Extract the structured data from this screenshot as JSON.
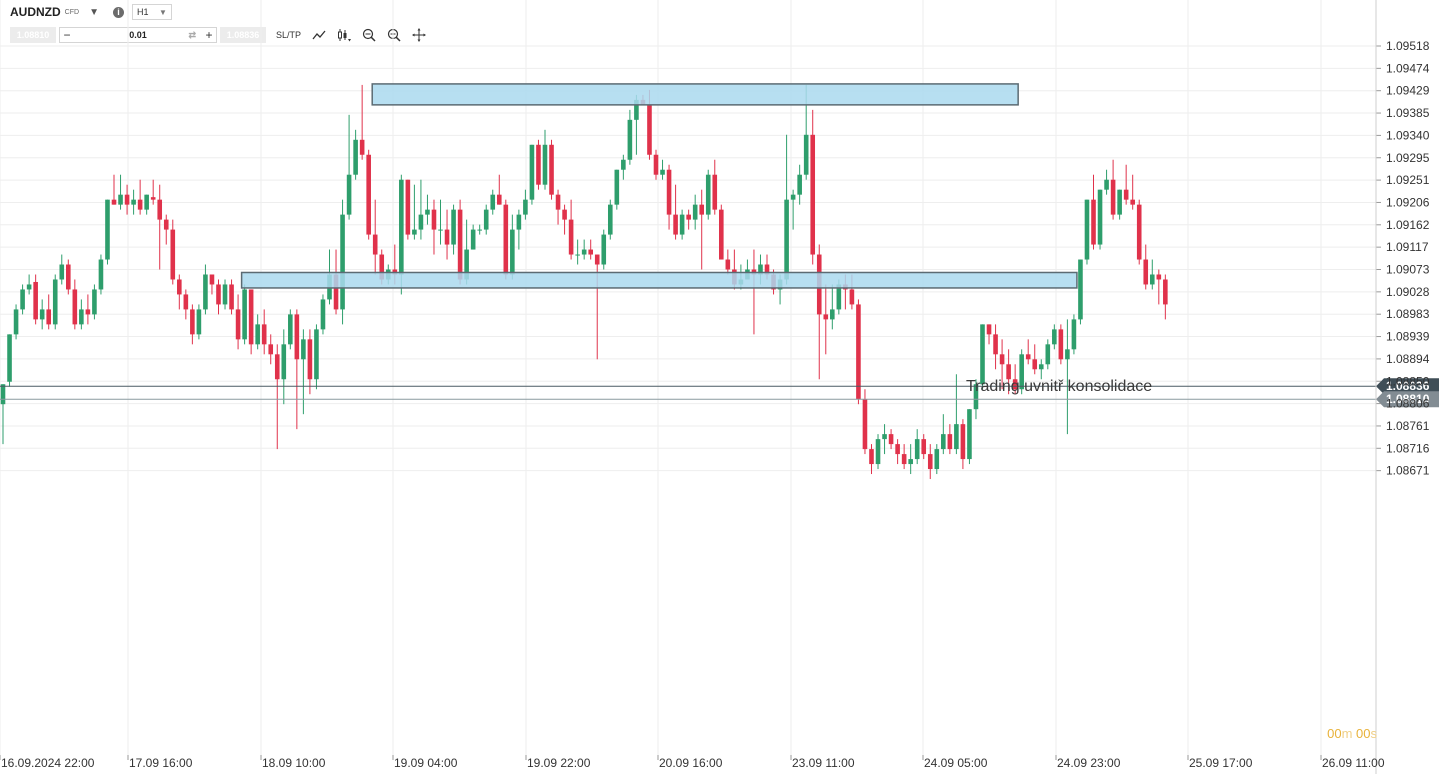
{
  "toolbar": {
    "symbol": "AUDNZD",
    "instrument_type": "CFD",
    "timeframe": "H1",
    "bid_box": "1.08810",
    "ask_box": "1.08836",
    "quantity": "0.01",
    "sltp_label": "SL/TP",
    "icons": [
      "dropdown-icon",
      "info-icon",
      "line-chart-icon",
      "candle-chart-icon",
      "zoom-out-icon",
      "zoom-in-icon",
      "crosshair-icon"
    ]
  },
  "annotation": "Trading uvnitř konsolidace",
  "timer": {
    "minutes": "00",
    "m": "m",
    "seconds": "00",
    "s": "s"
  },
  "colors": {
    "bull": "#2e9e6c",
    "bear": "#e0324b",
    "zone_fill": "#aad9ef",
    "zone_stroke": "#5c6b73",
    "current_price_tag": "#3f4e57",
    "bid_price_tag": "#828c93"
  },
  "chart_data": {
    "type": "candlestick",
    "y_ticks": [
      "1.09518",
      "1.09474",
      "1.09429",
      "1.09385",
      "1.09340",
      "1.09295",
      "1.09251",
      "1.09206",
      "1.09162",
      "1.09117",
      "1.09073",
      "1.09028",
      "1.08983",
      "1.08939",
      "1.08894",
      "1.08850",
      "1.08806",
      "1.08761",
      "1.08716",
      "1.08671"
    ],
    "ylim": [
      1.0865,
      1.0955
    ],
    "x_ticks": [
      "16.09.2024 22:00",
      "17.09 16:00",
      "18.09 10:00",
      "19.09 04:00",
      "19.09 22:00",
      "20.09 16:00",
      "23.09 11:00",
      "24.09 05:00",
      "24.09 23:00",
      "25.09 17:00",
      "26.09 11:00"
    ],
    "price_lines": [
      {
        "label": "1.08836",
        "value": 1.08836
      },
      {
        "label": "1.08810",
        "value": 1.0881
      }
    ],
    "zones": [
      {
        "from_candle": 57,
        "to_candle": 155,
        "low": 1.094,
        "high": 1.09442
      },
      {
        "from_candle": 37,
        "to_candle": 164,
        "low": 1.09033,
        "high": 1.09064
      }
    ],
    "candles": [
      [
        1.088,
        1.0884,
        1.0872,
        1.0884
      ],
      [
        1.08845,
        1.0894,
        1.08835,
        1.0894
      ],
      [
        1.0894,
        1.09,
        1.0893,
        1.0899
      ],
      [
        1.0899,
        1.0904,
        1.0898,
        1.0903
      ],
      [
        1.0903,
        1.0906,
        1.0902,
        1.0904
      ],
      [
        1.09045,
        1.0906,
        1.0896,
        1.0897
      ],
      [
        1.0897,
        1.0901,
        1.0895,
        1.0899
      ],
      [
        1.0899,
        1.0902,
        1.0895,
        1.0896
      ],
      [
        1.0896,
        1.0906,
        1.0895,
        1.0905
      ],
      [
        1.0905,
        1.091,
        1.0904,
        1.0908
      ],
      [
        1.0908,
        1.0909,
        1.0902,
        1.0903
      ],
      [
        1.0903,
        1.0905,
        1.0895,
        1.0896
      ],
      [
        1.0896,
        1.0901,
        1.0895,
        1.0899
      ],
      [
        1.0899,
        1.0902,
        1.0896,
        1.0898
      ],
      [
        1.0898,
        1.0904,
        1.0897,
        1.0903
      ],
      [
        1.0903,
        1.091,
        1.0902,
        1.0909
      ],
      [
        1.0909,
        1.0921,
        1.0908,
        1.0921
      ],
      [
        1.0921,
        1.0926,
        1.092,
        1.092
      ],
      [
        1.092,
        1.0926,
        1.0919,
        1.0922
      ],
      [
        1.0922,
        1.0924,
        1.0918,
        1.092
      ],
      [
        1.092,
        1.0923,
        1.0918,
        1.0921
      ],
      [
        1.0921,
        1.0925,
        1.0918,
        1.0919
      ],
      [
        1.0919,
        1.0922,
        1.0918,
        1.0922
      ],
      [
        1.09215,
        1.0925,
        1.092,
        1.0921
      ],
      [
        1.0921,
        1.0924,
        1.0907,
        1.0917
      ],
      [
        1.0917,
        1.0918,
        1.0912,
        1.0915
      ],
      [
        1.0915,
        1.0917,
        1.0904,
        1.0905
      ],
      [
        1.0905,
        1.0906,
        1.0899,
        1.0902
      ],
      [
        1.0902,
        1.0903,
        1.0897,
        1.0899
      ],
      [
        1.0899,
        1.09,
        1.0892,
        1.0894
      ],
      [
        1.0894,
        1.09,
        1.0893,
        1.0899
      ],
      [
        1.0899,
        1.0908,
        1.0898,
        1.0906
      ],
      [
        1.0906,
        1.0906,
        1.0902,
        1.0904
      ],
      [
        1.0904,
        1.0905,
        1.0898,
        1.09
      ],
      [
        1.09,
        1.0905,
        1.0899,
        1.0904
      ],
      [
        1.0904,
        1.0905,
        1.0898,
        1.0899
      ],
      [
        1.0899,
        1.0902,
        1.0891,
        1.0893
      ],
      [
        1.0893,
        1.0904,
        1.0892,
        1.0903
      ],
      [
        1.0903,
        1.0903,
        1.089,
        1.0892
      ],
      [
        1.0892,
        1.0898,
        1.0891,
        1.0896
      ],
      [
        1.0896,
        1.0899,
        1.089,
        1.0892
      ],
      [
        1.0892,
        1.0894,
        1.0888,
        1.089
      ],
      [
        1.089,
        1.0892,
        1.0871,
        1.0885
      ],
      [
        1.0885,
        1.0895,
        1.088,
        1.0892
      ],
      [
        1.0892,
        1.0899,
        1.0891,
        1.0898
      ],
      [
        1.0898,
        1.0899,
        1.0875,
        1.0889
      ],
      [
        1.0889,
        1.0895,
        1.0878,
        1.0893
      ],
      [
        1.0893,
        1.0895,
        1.0882,
        1.0885
      ],
      [
        1.0885,
        1.0896,
        1.0883,
        1.0895
      ],
      [
        1.0895,
        1.0902,
        1.0894,
        1.0901
      ],
      [
        1.0901,
        1.0911,
        1.09,
        1.0906
      ],
      [
        1.0906,
        1.0911,
        1.0898,
        1.0899
      ],
      [
        1.0899,
        1.0921,
        1.0896,
        1.0918
      ],
      [
        1.0918,
        1.0938,
        1.0917,
        1.0926
      ],
      [
        1.0926,
        1.0935,
        1.0925,
        1.0933
      ],
      [
        1.0933,
        1.0944,
        1.0929,
        1.093
      ],
      [
        1.093,
        1.0931,
        1.0913,
        1.0914
      ],
      [
        1.0914,
        1.0921,
        1.0906,
        1.091
      ],
      [
        1.091,
        1.0911,
        1.0904,
        1.0905
      ],
      [
        1.0905,
        1.0908,
        1.0904,
        1.0907
      ],
      [
        1.0907,
        1.0912,
        1.0904,
        1.0906
      ],
      [
        1.0906,
        1.0926,
        1.0902,
        1.0925
      ],
      [
        1.0925,
        1.0925,
        1.0913,
        1.0914
      ],
      [
        1.0914,
        1.0924,
        1.0913,
        1.0915
      ],
      [
        1.0915,
        1.0925,
        1.0913,
        1.0918
      ],
      [
        1.0918,
        1.0922,
        1.0916,
        1.0919
      ],
      [
        1.0919,
        1.0921,
        1.091,
        1.0915
      ],
      [
        1.0915,
        1.0921,
        1.0912,
        1.0915
      ],
      [
        1.0915,
        1.0919,
        1.0909,
        1.0912
      ],
      [
        1.0912,
        1.092,
        1.091,
        1.0919
      ],
      [
        1.0919,
        1.0921,
        1.0904,
        1.0905
      ],
      [
        1.0905,
        1.0917,
        1.0904,
        1.0911
      ],
      [
        1.0911,
        1.0916,
        1.0911,
        1.0915
      ],
      [
        1.0915,
        1.0916,
        1.0914,
        1.0915
      ],
      [
        1.0915,
        1.092,
        1.0914,
        1.0919
      ],
      [
        1.0919,
        1.0923,
        1.0918,
        1.0922
      ],
      [
        1.0922,
        1.0926,
        1.092,
        1.092
      ],
      [
        1.092,
        1.0921,
        1.0905,
        1.0906
      ],
      [
        1.0906,
        1.0918,
        1.0905,
        1.0915
      ],
      [
        1.0915,
        1.0919,
        1.0911,
        1.0918
      ],
      [
        1.0918,
        1.0923,
        1.0917,
        1.0921
      ],
      [
        1.0921,
        1.0932,
        1.092,
        1.0932
      ],
      [
        1.0932,
        1.0933,
        1.0923,
        1.0924
      ],
      [
        1.0924,
        1.0935,
        1.0923,
        1.0932
      ],
      [
        1.0932,
        1.0933,
        1.0921,
        1.0922
      ],
      [
        1.0922,
        1.0923,
        1.0916,
        1.0919
      ],
      [
        1.0919,
        1.092,
        1.0914,
        1.0917
      ],
      [
        1.0917,
        1.0921,
        1.0909,
        1.091
      ],
      [
        1.091,
        1.0913,
        1.0908,
        1.091
      ],
      [
        1.091,
        1.0913,
        1.0909,
        1.0911
      ],
      [
        1.0911,
        1.0913,
        1.0909,
        1.091
      ],
      [
        1.091,
        1.091,
        1.0889,
        1.0908
      ],
      [
        1.0908,
        1.0915,
        1.0907,
        1.0914
      ],
      [
        1.0914,
        1.0921,
        1.0913,
        1.092
      ],
      [
        1.092,
        1.0927,
        1.0919,
        1.0927
      ],
      [
        1.0927,
        1.093,
        1.0925,
        1.0929
      ],
      [
        1.0929,
        1.0939,
        1.0928,
        1.0937
      ],
      [
        1.0937,
        1.0942,
        1.093,
        1.0941
      ],
      [
        1.0941,
        1.0942,
        1.094,
        1.094
      ],
      [
        1.094,
        1.0943,
        1.0929,
        1.093
      ],
      [
        1.093,
        1.0931,
        1.0925,
        1.0926
      ],
      [
        1.0926,
        1.0929,
        1.0925,
        1.0927
      ],
      [
        1.0927,
        1.0928,
        1.0915,
        1.0918
      ],
      [
        1.0918,
        1.0924,
        1.0913,
        1.0914
      ],
      [
        1.0914,
        1.0919,
        1.0913,
        1.0918
      ],
      [
        1.0918,
        1.0919,
        1.0915,
        1.0917
      ],
      [
        1.0917,
        1.0922,
        1.0915,
        1.092
      ],
      [
        1.092,
        1.0923,
        1.0907,
        1.0918
      ],
      [
        1.0918,
        1.0927,
        1.0917,
        1.0926
      ],
      [
        1.0926,
        1.0929,
        1.0918,
        1.0919
      ],
      [
        1.0919,
        1.092,
        1.0909,
        1.0909
      ],
      [
        1.0909,
        1.0911,
        1.0906,
        1.0907
      ],
      [
        1.0907,
        1.0911,
        1.0903,
        1.0904
      ],
      [
        1.0904,
        1.0908,
        1.0903,
        1.0905
      ],
      [
        1.0905,
        1.0909,
        1.0905,
        1.0907
      ],
      [
        1.0907,
        1.0911,
        1.0894,
        1.0906
      ],
      [
        1.0906,
        1.091,
        1.0904,
        1.0908
      ],
      [
        1.0908,
        1.091,
        1.0905,
        1.0906
      ],
      [
        1.0906,
        1.0907,
        1.0902,
        1.0903
      ],
      [
        1.0903,
        1.0906,
        1.09,
        1.0905
      ],
      [
        1.0905,
        1.0934,
        1.0904,
        1.0921
      ],
      [
        1.0921,
        1.0923,
        1.0915,
        1.0922
      ],
      [
        1.0922,
        1.0928,
        1.092,
        1.0926
      ],
      [
        1.0926,
        1.0944,
        1.0925,
        1.0934
      ],
      [
        1.0934,
        1.0939,
        1.0908,
        1.091
      ],
      [
        1.091,
        1.0912,
        1.0885,
        1.0898
      ],
      [
        1.0898,
        1.0904,
        1.089,
        1.0897
      ],
      [
        1.0897,
        1.0904,
        1.0895,
        1.0899
      ],
      [
        1.0899,
        1.0905,
        1.0898,
        1.0904
      ],
      [
        1.0904,
        1.0906,
        1.0899,
        1.0903
      ],
      [
        1.0903,
        1.0906,
        1.0899,
        1.09
      ],
      [
        1.09,
        1.0901,
        1.088,
        1.0881
      ],
      [
        1.0881,
        1.0883,
        1.087,
        1.0871
      ],
      [
        1.0871,
        1.0872,
        1.0866,
        1.0868
      ],
      [
        1.0868,
        1.0874,
        1.0867,
        1.0873
      ],
      [
        1.0873,
        1.0876,
        1.087,
        1.0874
      ],
      [
        1.0874,
        1.0875,
        1.0871,
        1.0872
      ],
      [
        1.0872,
        1.0873,
        1.0868,
        1.087
      ],
      [
        1.087,
        1.0872,
        1.0867,
        1.0868
      ],
      [
        1.0868,
        1.0872,
        1.0866,
        1.0869
      ],
      [
        1.0869,
        1.0875,
        1.0868,
        1.0873
      ],
      [
        1.0873,
        1.0874,
        1.0869,
        1.087
      ],
      [
        1.087,
        1.0872,
        1.0865,
        1.0867
      ],
      [
        1.0867,
        1.0872,
        1.0866,
        1.0871
      ],
      [
        1.0871,
        1.0878,
        1.087,
        1.0874
      ],
      [
        1.0874,
        1.0876,
        1.087,
        1.0871
      ],
      [
        1.0871,
        1.0886,
        1.087,
        1.0876
      ],
      [
        1.0876,
        1.0877,
        1.0867,
        1.0869
      ],
      [
        1.0869,
        1.0879,
        1.0868,
        1.0879
      ],
      [
        1.0879,
        1.0885,
        1.0877,
        1.0884
      ],
      [
        1.0884,
        1.0896,
        1.0883,
        1.0896
      ],
      [
        1.0896,
        1.0896,
        1.0892,
        1.0894
      ],
      [
        1.0894,
        1.0896,
        1.0887,
        1.089
      ],
      [
        1.089,
        1.0893,
        1.0883,
        1.0888
      ],
      [
        1.0888,
        1.0891,
        1.0882,
        1.0885
      ],
      [
        1.0885,
        1.0888,
        1.0882,
        1.0883
      ],
      [
        1.0883,
        1.0891,
        1.0882,
        1.089
      ],
      [
        1.089,
        1.0893,
        1.0888,
        1.0889
      ],
      [
        1.0889,
        1.0892,
        1.0886,
        1.0887
      ],
      [
        1.0887,
        1.0889,
        1.0885,
        1.0888
      ],
      [
        1.0888,
        1.0893,
        1.0887,
        1.0892
      ],
      [
        1.0892,
        1.0896,
        1.0891,
        1.0895
      ],
      [
        1.0895,
        1.0896,
        1.0888,
        1.0889
      ],
      [
        1.0889,
        1.0897,
        1.0874,
        1.0891
      ],
      [
        1.0891,
        1.0898,
        1.089,
        1.0897
      ],
      [
        1.0897,
        1.0909,
        1.0896,
        1.0909
      ],
      [
        1.0909,
        1.0921,
        1.0908,
        1.0921
      ],
      [
        1.0921,
        1.0926,
        1.0911,
        1.0912
      ],
      [
        1.0912,
        1.0923,
        1.0911,
        1.0923
      ],
      [
        1.0923,
        1.0927,
        1.0922,
        1.0925
      ],
      [
        1.0925,
        1.0929,
        1.0917,
        1.0918
      ],
      [
        1.0918,
        1.0923,
        1.0917,
        1.0923
      ],
      [
        1.0923,
        1.0928,
        1.092,
        1.0921
      ],
      [
        1.0921,
        1.0926,
        1.0919,
        1.092
      ],
      [
        1.092,
        1.0921,
        1.0908,
        1.0909
      ],
      [
        1.0909,
        1.0912,
        1.0903,
        1.0904
      ],
      [
        1.0904,
        1.0909,
        1.0903,
        1.0906
      ],
      [
        1.0906,
        1.0907,
        1.09,
        1.0905
      ],
      [
        1.0905,
        1.0906,
        1.0897,
        1.09
      ]
    ]
  }
}
